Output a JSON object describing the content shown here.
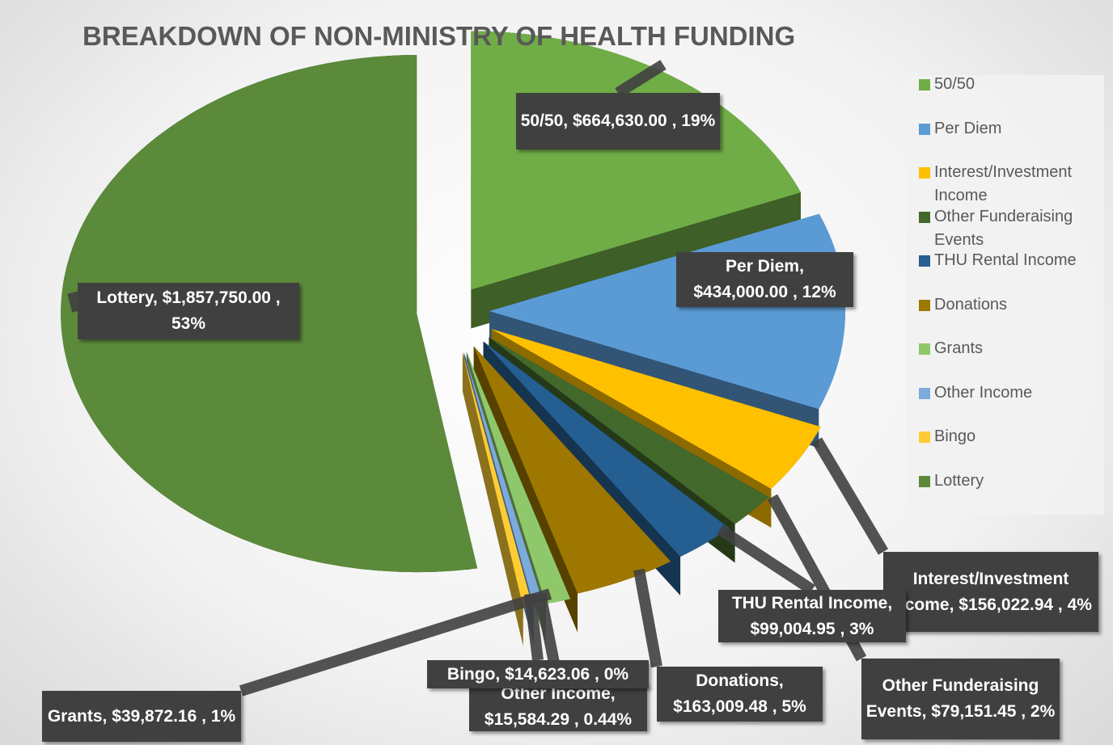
{
  "chart_data": {
    "type": "pie",
    "title": "BREAKDOWN OF NON-MINISTRY OF HEALTH FUNDING",
    "categories": [
      "50/50",
      "Per Diem",
      "Interest/Investment Income",
      "Other Funderaising Events",
      "THU Rental Income",
      "Donations",
      "Grants",
      "Other Income",
      "Bingo",
      "Lottery"
    ],
    "values": [
      664630.0,
      434000.0,
      156022.94,
      79151.45,
      99004.95,
      163009.48,
      39872.16,
      15584.29,
      14623.06,
      1857750.0
    ],
    "value_labels": [
      "$664,630.00",
      "$434,000.00",
      "$156,022.94",
      "$79,151.45",
      "$99,004.95",
      "$163,009.48",
      "$39,872.16",
      "$15,584.29",
      "$14,623.06",
      "$1,857,750.00"
    ],
    "percents": [
      19,
      12,
      4,
      2,
      3,
      5,
      1,
      0.44,
      0,
      53
    ],
    "percent_labels": [
      "19%",
      "12%",
      "4%",
      "2%",
      "3%",
      "5%",
      "1%",
      "0.44%",
      "0%",
      "53%"
    ],
    "colors": [
      "#70ad47",
      "#5b9bd5",
      "#ffc000",
      "#43682b",
      "#255e91",
      "#9e7700",
      "#8fc86a",
      "#7caadc",
      "#ffcd33",
      "#5b8a3a"
    ],
    "legend": "right"
  }
}
